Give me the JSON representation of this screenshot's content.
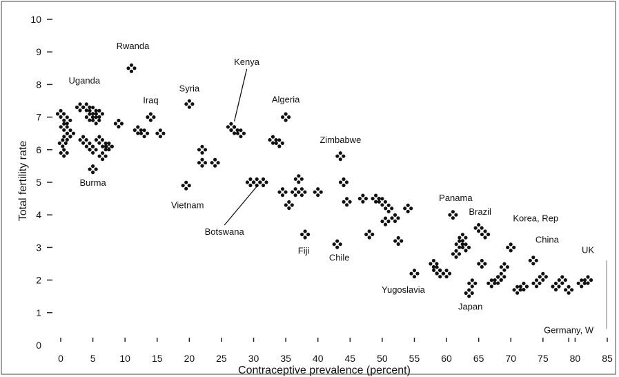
{
  "chart_data": {
    "type": "scatter",
    "xlabel": "Contraceptive prevalence (percent)",
    "ylabel": "Total fertility rate",
    "xlim": [
      0,
      85
    ],
    "ylim": [
      0,
      10
    ],
    "x_ticks": [
      0,
      5,
      10,
      15,
      20,
      25,
      30,
      35,
      40,
      45,
      50,
      55,
      60,
      65,
      70,
      75,
      80,
      85
    ],
    "y_ticks": [
      0,
      1,
      2,
      3,
      4,
      5,
      6,
      7,
      8,
      9,
      10
    ],
    "grid": false,
    "points": [
      [
        0,
        7.1
      ],
      [
        0.5,
        6.7
      ],
      [
        1,
        6.9
      ],
      [
        0.3,
        6.2
      ],
      [
        1,
        6.4
      ],
      [
        0.5,
        5.9
      ],
      [
        1.5,
        6.5
      ],
      [
        3,
        7.3
      ],
      [
        4,
        7.3
      ],
      [
        5,
        7.2
      ],
      [
        6,
        7.1
      ],
      [
        4.5,
        7.0
      ],
      [
        5.5,
        6.9
      ],
      [
        3.5,
        6.3
      ],
      [
        4.5,
        6.1
      ],
      [
        6,
        6.3
      ],
      [
        7,
        6.1
      ],
      [
        5,
        6.0
      ],
      [
        6.5,
        5.8
      ],
      [
        5,
        5.4
      ],
      [
        7.5,
        6.1
      ],
      [
        9,
        6.8
      ],
      [
        11,
        8.5
      ],
      [
        12,
        6.6
      ],
      [
        13,
        6.5
      ],
      [
        14,
        7.0
      ],
      [
        15.5,
        6.5
      ],
      [
        20,
        7.4
      ],
      [
        19.5,
        4.9
      ],
      [
        22,
        6.0
      ],
      [
        22,
        5.6
      ],
      [
        24,
        5.6
      ],
      [
        26.5,
        6.7
      ],
      [
        27,
        6.6
      ],
      [
        28,
        6.5
      ],
      [
        29.5,
        5.0
      ],
      [
        30.5,
        5.0
      ],
      [
        31.5,
        5.0
      ],
      [
        33,
        6.3
      ],
      [
        34,
        6.2
      ],
      [
        34.5,
        4.7
      ],
      [
        35,
        7.0
      ],
      [
        35.5,
        4.3
      ],
      [
        36.5,
        4.7
      ],
      [
        37,
        5.1
      ],
      [
        37.5,
        4.7
      ],
      [
        38,
        3.4
      ],
      [
        40,
        4.7
      ],
      [
        43,
        3.1
      ],
      [
        43.5,
        5.8
      ],
      [
        44,
        5.0
      ],
      [
        44.5,
        4.4
      ],
      [
        47,
        4.5
      ],
      [
        48,
        3.4
      ],
      [
        49,
        4.5
      ],
      [
        50,
        4.4
      ],
      [
        50.5,
        3.8
      ],
      [
        51,
        4.2
      ],
      [
        52,
        3.9
      ],
      [
        52.5,
        3.2
      ],
      [
        54,
        4.2
      ],
      [
        55,
        2.2
      ],
      [
        58,
        2.5
      ],
      [
        58.5,
        2.3
      ],
      [
        59,
        2.2
      ],
      [
        60,
        2.2
      ],
      [
        61,
        4.0
      ],
      [
        61.5,
        2.8
      ],
      [
        62,
        3.1
      ],
      [
        62.5,
        3.3
      ],
      [
        63,
        3.0
      ],
      [
        63.5,
        1.6
      ],
      [
        64,
        1.9
      ],
      [
        65,
        3.6
      ],
      [
        65.5,
        2.5
      ],
      [
        66,
        3.4
      ],
      [
        67,
        1.9
      ],
      [
        68,
        2.0
      ],
      [
        68.5,
        2.1
      ],
      [
        69,
        2.4
      ],
      [
        70,
        3.0
      ],
      [
        71,
        1.7
      ],
      [
        72,
        1.8
      ],
      [
        73.5,
        2.6
      ],
      [
        74,
        1.9
      ],
      [
        75,
        2.1
      ],
      [
        77,
        1.8
      ],
      [
        78,
        2.0
      ],
      [
        79,
        1.7
      ],
      [
        81,
        1.9
      ],
      [
        82,
        2.0
      ]
    ],
    "annotations": [
      {
        "label": "Uganda",
        "x": 1,
        "y": 7.1
      },
      {
        "label": "Rwanda",
        "x": 11,
        "y": 8.5
      },
      {
        "label": "Iraq",
        "x": 14,
        "y": 7.0
      },
      {
        "label": "Syria",
        "x": 20,
        "y": 7.4
      },
      {
        "label": "Kenya",
        "x": 27,
        "y": 6.7
      },
      {
        "label": "Algeria",
        "x": 35,
        "y": 7.0
      },
      {
        "label": "Zimbabwe",
        "x": 43.5,
        "y": 5.8
      },
      {
        "label": "Burma",
        "x": 5,
        "y": 5.4
      },
      {
        "label": "Vietnam",
        "x": 19.5,
        "y": 4.9
      },
      {
        "label": "Botswana",
        "x": 30.5,
        "y": 5.0
      },
      {
        "label": "Fiji",
        "x": 38,
        "y": 3.4
      },
      {
        "label": "Chile",
        "x": 43,
        "y": 3.1
      },
      {
        "label": "Panama",
        "x": 61,
        "y": 4.0
      },
      {
        "label": "Brazil",
        "x": 65,
        "y": 3.6
      },
      {
        "label": "Korea, Rep",
        "x": 70,
        "y": 3.0
      },
      {
        "label": "China",
        "x": 73.5,
        "y": 2.6
      },
      {
        "label": "UK",
        "x": 82,
        "y": 2.0
      },
      {
        "label": "Yugoslavia",
        "x": 55,
        "y": 2.2
      },
      {
        "label": "Japan",
        "x": 63.5,
        "y": 1.6
      },
      {
        "label": "Germany, W",
        "x": 79,
        "y": 0.1
      }
    ]
  }
}
